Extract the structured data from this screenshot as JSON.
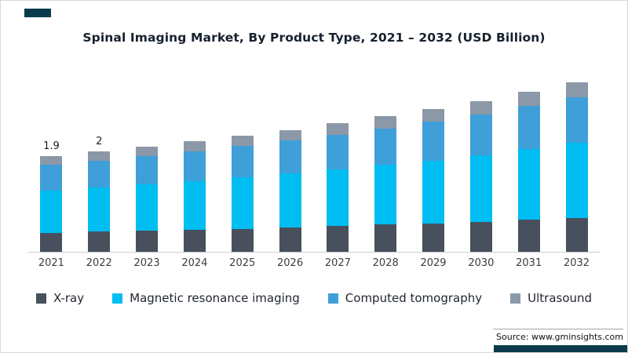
{
  "accent_color": "#0b3a4c",
  "title": "Spinal Imaging Market, By Product Type, 2021 – 2032 (USD Billion)",
  "source": "Source: www.gminsights.com",
  "chart_data": {
    "type": "bar",
    "stacked": true,
    "title": "Spinal Imaging Market, By Product Type, 2021 – 2032 (USD Billion)",
    "xlabel": "",
    "ylabel": "USD Billion",
    "ylim": [
      0,
      3.6
    ],
    "grid": false,
    "legend_position": "bottom",
    "categories": [
      "2021",
      "2022",
      "2023",
      "2024",
      "2025",
      "2026",
      "2027",
      "2028",
      "2029",
      "2030",
      "2031",
      "2032"
    ],
    "series": [
      {
        "name": "X-ray",
        "color": "#47505c",
        "values": [
          0.38,
          0.4,
          0.42,
          0.44,
          0.46,
          0.49,
          0.51,
          0.54,
          0.57,
          0.6,
          0.64,
          0.68
        ]
      },
      {
        "name": "Magnetic resonance imaging",
        "color": "#00bdf2",
        "values": [
          0.84,
          0.88,
          0.92,
          0.97,
          1.02,
          1.07,
          1.13,
          1.19,
          1.25,
          1.32,
          1.4,
          1.49
        ]
      },
      {
        "name": "Computed tomography",
        "color": "#3f9fd8",
        "values": [
          0.51,
          0.54,
          0.57,
          0.59,
          0.63,
          0.66,
          0.69,
          0.73,
          0.77,
          0.81,
          0.86,
          0.91
        ]
      },
      {
        "name": "Ultrasound",
        "color": "#8b98a7",
        "values": [
          0.17,
          0.18,
          0.19,
          0.2,
          0.21,
          0.21,
          0.23,
          0.24,
          0.25,
          0.27,
          0.29,
          0.3
        ]
      }
    ],
    "totals": [
      1.9,
      2.0,
      2.1,
      2.2,
      2.32,
      2.43,
      2.56,
      2.7,
      2.84,
      3.0,
      3.19,
      3.38
    ],
    "bar_value_labels": [
      "1.9",
      "2",
      "",
      "",
      "",
      "",
      "",
      "",
      "",
      "",
      "",
      ""
    ]
  }
}
